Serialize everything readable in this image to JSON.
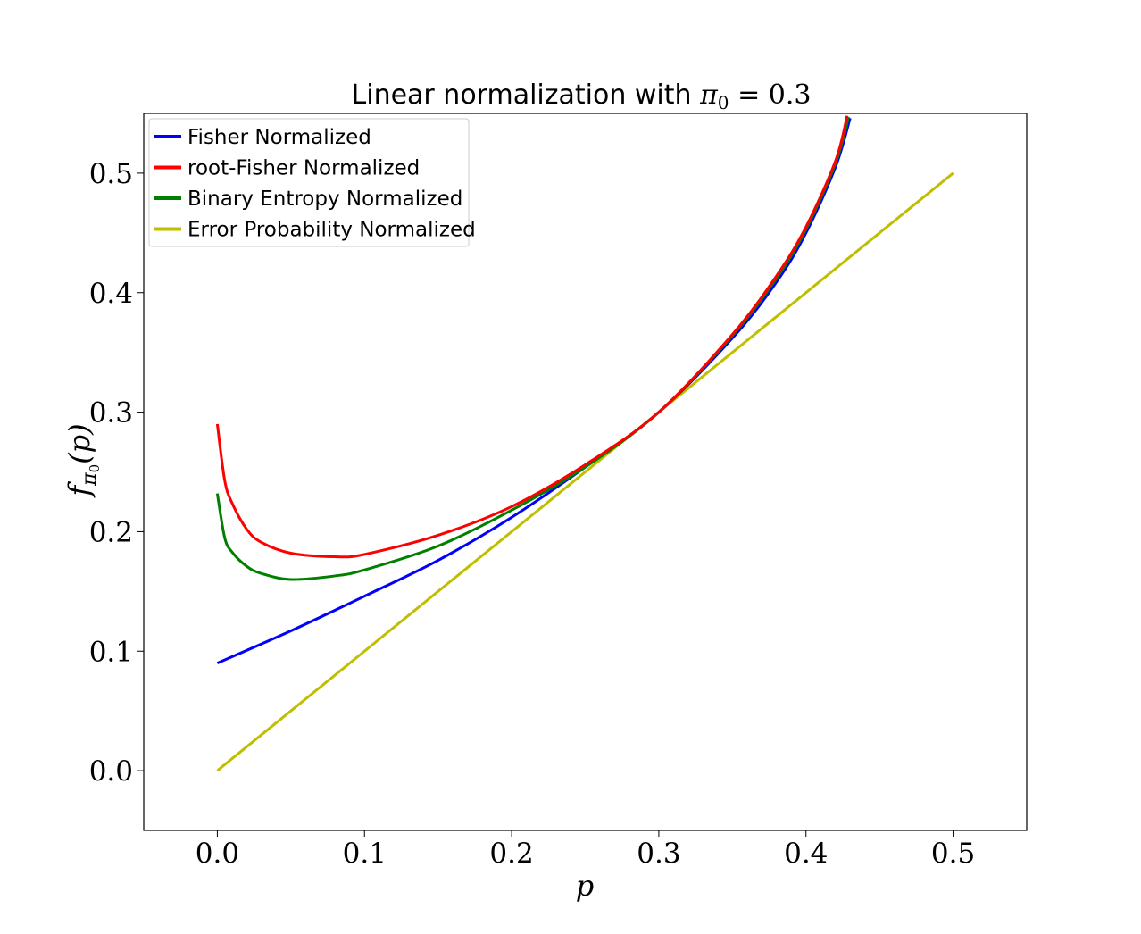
{
  "chart_data": {
    "type": "line",
    "title": {
      "text": "Linear normalization with ",
      "math_symbol": "π",
      "math_subscript": "0",
      "math_rest": " = 0.3"
    },
    "xlabel": "p",
    "ylabel": {
      "symbol": "f",
      "subscript_symbol": "π",
      "subscript_index": "0",
      "argument": "(p)"
    },
    "xlim": [
      -0.05,
      0.55
    ],
    "ylim": [
      -0.05,
      0.55
    ],
    "xticks": [
      "0.0",
      "0.1",
      "0.2",
      "0.3",
      "0.4",
      "0.5"
    ],
    "yticks": [
      "0.0",
      "0.1",
      "0.2",
      "0.3",
      "0.4",
      "0.5"
    ],
    "grid": false,
    "legend_position": "upper-left",
    "series": [
      {
        "name": "Fisher Normalized",
        "color": "#0000ff",
        "x": [
          0.0,
          0.05,
          0.1,
          0.15,
          0.2,
          0.25,
          0.3,
          0.35,
          0.38,
          0.4,
          0.42,
          0.43
        ],
        "y": [
          0.09,
          0.117,
          0.146,
          0.176,
          0.212,
          0.254,
          0.3,
          0.362,
          0.409,
          0.45,
          0.505,
          0.546
        ]
      },
      {
        "name": "root-Fisher Normalized",
        "color": "#ff0000",
        "x": [
          0.0,
          0.005,
          0.01,
          0.02,
          0.03,
          0.05,
          0.08,
          0.1,
          0.15,
          0.2,
          0.25,
          0.3,
          0.35,
          0.38,
          0.4,
          0.42,
          0.428
        ],
        "y": [
          0.29,
          0.243,
          0.224,
          0.202,
          0.191,
          0.182,
          0.179,
          0.181,
          0.197,
          0.221,
          0.256,
          0.3,
          0.365,
          0.414,
          0.455,
          0.51,
          0.548
        ]
      },
      {
        "name": "Binary Entropy Normalized",
        "color": "#008000",
        "x": [
          0.0,
          0.005,
          0.01,
          0.02,
          0.03,
          0.05,
          0.08,
          0.1,
          0.15,
          0.2,
          0.25,
          0.3,
          0.35,
          0.38,
          0.4,
          0.42,
          0.429
        ],
        "y": [
          0.232,
          0.195,
          0.183,
          0.171,
          0.165,
          0.16,
          0.163,
          0.168,
          0.188,
          0.218,
          0.254,
          0.3,
          0.364,
          0.412,
          0.453,
          0.508,
          0.547
        ]
      },
      {
        "name": "Error Probability Normalized",
        "color": "#bfbf00",
        "x": [
          0.0,
          0.5
        ],
        "y": [
          0.0,
          0.5
        ]
      }
    ]
  }
}
